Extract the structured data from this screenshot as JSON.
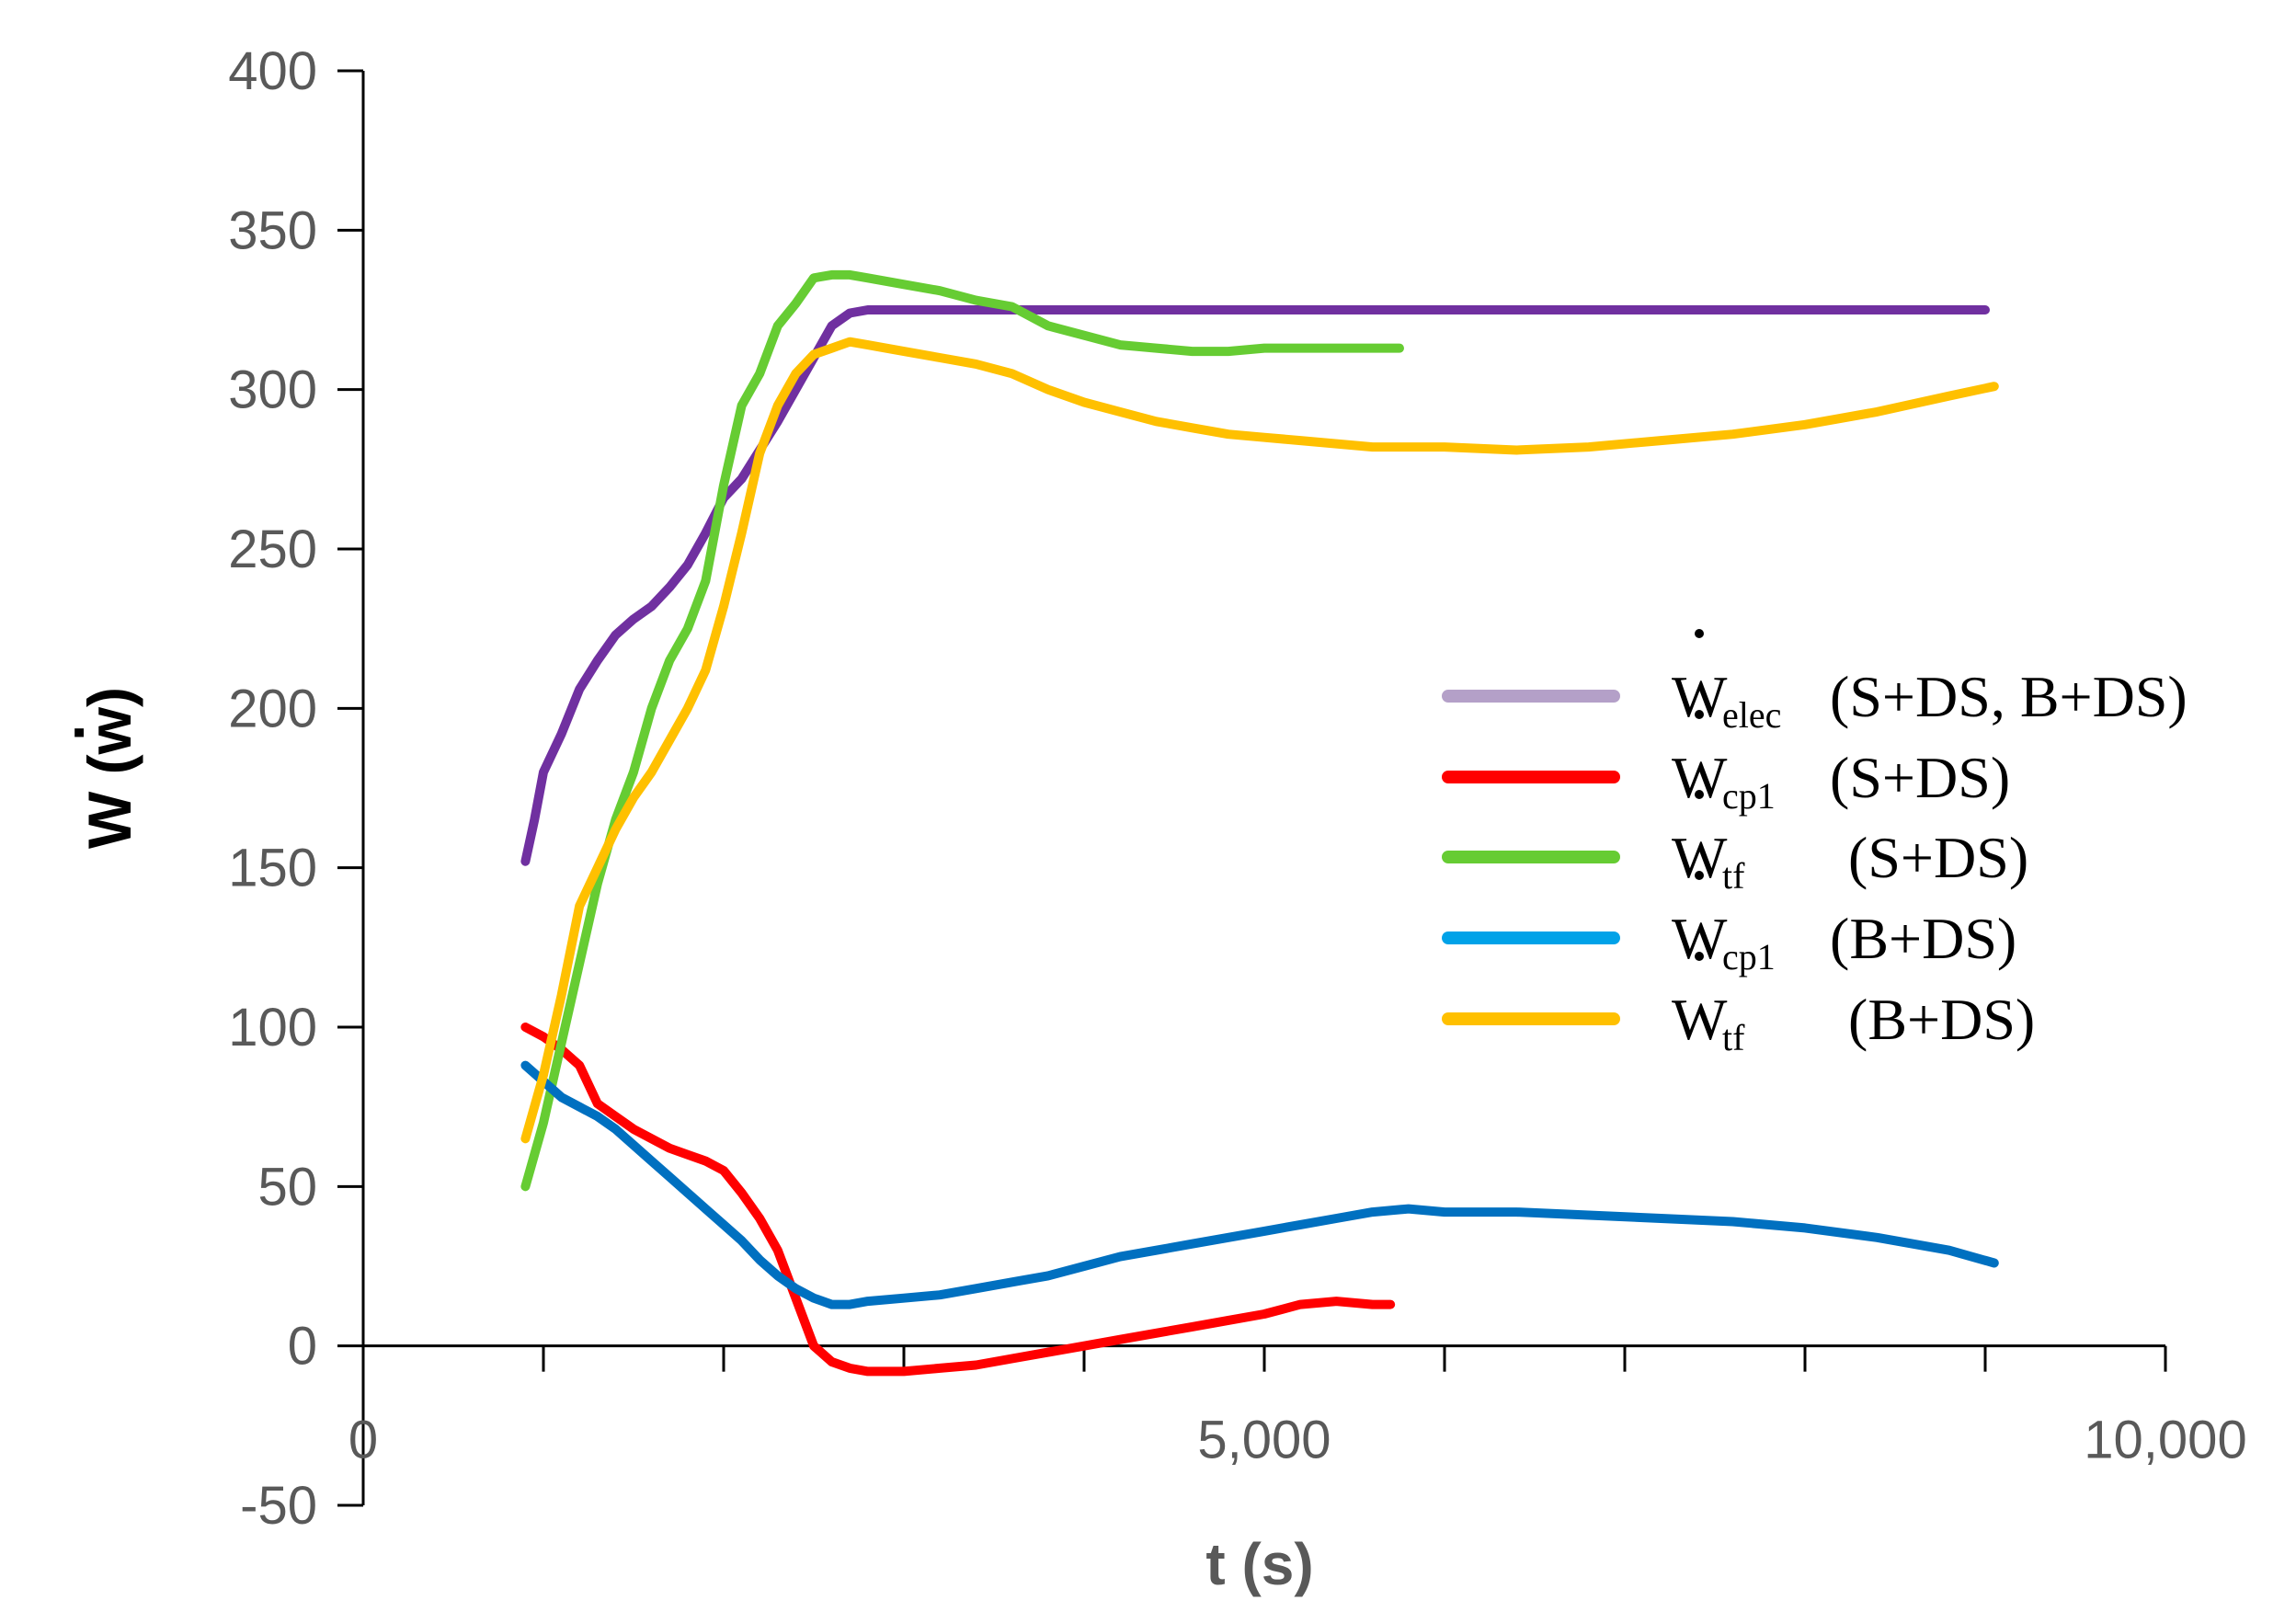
{
  "chart_data": {
    "type": "line",
    "title": "",
    "xlabel": "t (s)",
    "ylabel": "W (w)",
    "xlim": [
      0,
      10000
    ],
    "ylim": [
      -50,
      400
    ],
    "x_ticks": [
      0,
      5000,
      10000
    ],
    "x_tick_labels": [
      "0",
      "5,000",
      "10,000"
    ],
    "x_minor_ticks": [
      1000,
      2000,
      3000,
      4000,
      6000,
      7000,
      8000,
      9000
    ],
    "y_ticks": [
      -50,
      0,
      50,
      100,
      150,
      200,
      250,
      300,
      350,
      400
    ],
    "y_tick_labels": [
      "-50",
      "0",
      "50",
      "100",
      "150",
      "200",
      "250",
      "300",
      "350",
      "400"
    ],
    "grid": false,
    "legend_position": "right",
    "series": [
      {
        "name": "W_elec (S+DS, B+DS)",
        "legend_main": "W",
        "legend_sub": "elec",
        "legend_case": "(S+DS, B+DS)",
        "color": "#7030A0",
        "legend_color": "#B4A0C8",
        "x": [
          900,
          950,
          1000,
          1100,
          1200,
          1300,
          1400,
          1500,
          1600,
          1700,
          1800,
          1900,
          2000,
          2100,
          2200,
          2300,
          2400,
          2500,
          2600,
          2700,
          2800,
          2900,
          3000,
          3100,
          3200,
          3300,
          3500,
          4000,
          5000,
          6000,
          7000,
          8000,
          9000
        ],
        "y": [
          152,
          165,
          180,
          192,
          206,
          215,
          223,
          228,
          232,
          238,
          245,
          255,
          266,
          272,
          281,
          290,
          300,
          310,
          320,
          324,
          325,
          325,
          325,
          325,
          325,
          325,
          325,
          325,
          325,
          325,
          325,
          325,
          325
        ]
      },
      {
        "name": "W_cp1 (S+DS)",
        "legend_main": "W",
        "legend_sub": "cp1",
        "legend_case": "(S+DS)",
        "color": "#FF0000",
        "legend_color": "#FF0000",
        "x": [
          900,
          1000,
          1100,
          1200,
          1300,
          1400,
          1500,
          1600,
          1700,
          1800,
          1900,
          2000,
          2100,
          2200,
          2300,
          2400,
          2500,
          2600,
          2700,
          2800,
          3000,
          3200,
          3400,
          3600,
          3800,
          4000,
          4200,
          4400,
          4600,
          4800,
          5000,
          5200,
          5400,
          5600,
          5700
        ],
        "y": [
          100,
          97,
          93,
          88,
          76,
          72,
          68,
          65,
          62,
          60,
          58,
          55,
          48,
          40,
          30,
          15,
          0,
          -5,
          -7,
          -8,
          -8,
          -7,
          -6,
          -4,
          -2,
          0,
          2,
          4,
          6,
          8,
          10,
          13,
          14,
          13,
          13
        ]
      },
      {
        "name": "W_tf (S+DS)",
        "legend_main": "W",
        "legend_sub": "tf",
        "legend_case": "(S+DS)",
        "color": "#66CC33",
        "legend_color": "#66CC33",
        "x": [
          900,
          1000,
          1100,
          1200,
          1300,
          1400,
          1500,
          1600,
          1700,
          1800,
          1900,
          2000,
          2100,
          2200,
          2300,
          2400,
          2500,
          2600,
          2700,
          2800,
          2900,
          3000,
          3200,
          3400,
          3600,
          3800,
          4000,
          4200,
          4400,
          4600,
          4800,
          5000,
          5200,
          5400,
          5600,
          5750
        ],
        "y": [
          50,
          70,
          95,
          120,
          145,
          165,
          180,
          200,
          215,
          225,
          240,
          270,
          295,
          305,
          320,
          327,
          335,
          336,
          336,
          335,
          334,
          333,
          331,
          328,
          326,
          320,
          317,
          314,
          313,
          312,
          312,
          313,
          313,
          313,
          313,
          313
        ]
      },
      {
        "name": "W_cp1 (B+DS)",
        "legend_main": "W",
        "legend_sub": "cp1",
        "legend_case": "(B+DS)",
        "color": "#0070C0",
        "legend_color": "#00A2E8",
        "x": [
          900,
          1000,
          1100,
          1200,
          1300,
          1400,
          1500,
          1600,
          1700,
          1800,
          1900,
          2000,
          2100,
          2200,
          2300,
          2400,
          2500,
          2600,
          2700,
          2800,
          3000,
          3200,
          3400,
          3600,
          3800,
          4000,
          4200,
          4400,
          4600,
          4800,
          5000,
          5200,
          5400,
          5600,
          5800,
          6000,
          6400,
          6800,
          7200,
          7600,
          8000,
          8400,
          8800,
          9050
        ],
        "y": [
          88,
          83,
          78,
          75,
          72,
          68,
          63,
          58,
          53,
          48,
          43,
          38,
          33,
          27,
          22,
          18,
          15,
          13,
          13,
          14,
          15,
          16,
          18,
          20,
          22,
          25,
          28,
          30,
          32,
          34,
          36,
          38,
          40,
          42,
          43,
          42,
          42,
          41,
          40,
          39,
          37,
          34,
          30,
          26
        ]
      },
      {
        "name": "W_tf (B+DS)",
        "legend_main": "W",
        "legend_sub": "tf",
        "legend_case": "(B+DS)",
        "color": "#FFC000",
        "legend_color": "#FFC000",
        "x": [
          900,
          1000,
          1100,
          1200,
          1300,
          1400,
          1500,
          1600,
          1700,
          1800,
          1900,
          2000,
          2100,
          2200,
          2300,
          2400,
          2500,
          2600,
          2700,
          2800,
          3000,
          3200,
          3400,
          3600,
          3800,
          4000,
          4200,
          4400,
          4600,
          4800,
          5000,
          5200,
          5400,
          5600,
          5800,
          6000,
          6400,
          6800,
          7200,
          7600,
          8000,
          8400,
          8800,
          9050
        ],
        "y": [
          65,
          85,
          110,
          138,
          150,
          162,
          172,
          180,
          190,
          200,
          212,
          232,
          255,
          280,
          295,
          305,
          311,
          313,
          315,
          314,
          312,
          310,
          308,
          305,
          300,
          296,
          293,
          290,
          288,
          286,
          285,
          284,
          283,
          282,
          282,
          282,
          281,
          282,
          284,
          286,
          289,
          293,
          298,
          301
        ]
      }
    ]
  }
}
